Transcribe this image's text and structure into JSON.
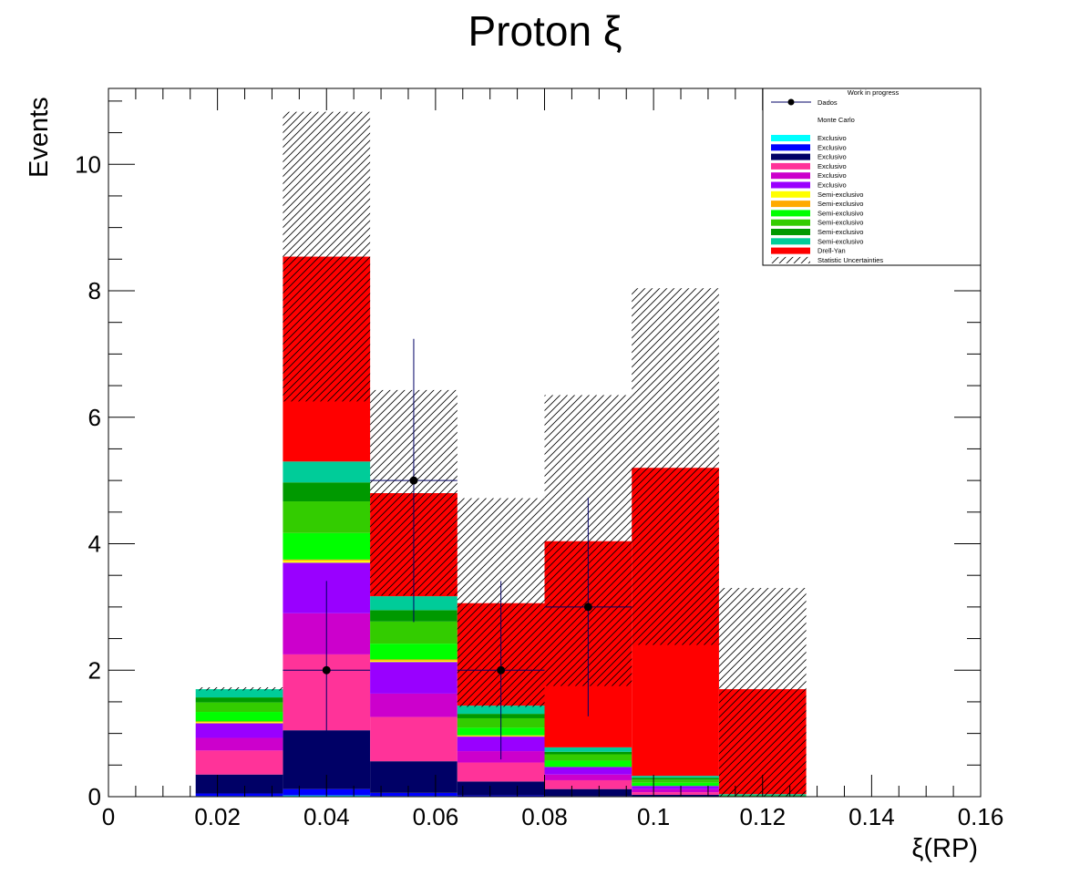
{
  "chart_data": {
    "type": "bar",
    "stacked": true,
    "title": "Proton ξ",
    "xlabel": "ξ(RP)",
    "ylabel": "Events",
    "xlim": [
      0,
      0.16
    ],
    "ylim": [
      0,
      11.2
    ],
    "grid": false,
    "legend_position": "top-right",
    "x_ticks": [
      "0",
      "0.02",
      "0.04",
      "0.06",
      "0.08",
      "0.1",
      "0.12",
      "0.14",
      "0.16"
    ],
    "y_ticks": [
      "0",
      "2",
      "4",
      "6",
      "8",
      "10"
    ],
    "bin_edges": [
      0.016,
      0.032,
      0.048,
      0.064,
      0.08,
      0.096,
      0.112,
      0.128
    ],
    "legend": {
      "header": "Work in progress",
      "data_label": "Dados",
      "mc_label": "Monte Carlo",
      "uncertainty_label": "Statistic Uncertainties"
    },
    "series": [
      {
        "name": "Exclusivo",
        "color": "#00ffff",
        "values": [
          0.01,
          0.02,
          0.01,
          0.0,
          0.0,
          0.0,
          0.0
        ]
      },
      {
        "name": "Exclusivo",
        "color": "#0000ff",
        "values": [
          0.04,
          0.1,
          0.05,
          0.02,
          0.01,
          0.0,
          0.0
        ]
      },
      {
        "name": "Exclusivo",
        "color": "#000066",
        "values": [
          0.3,
          0.93,
          0.5,
          0.22,
          0.11,
          0.03,
          0.0
        ]
      },
      {
        "name": "Exclusivo",
        "color": "#ff3399",
        "values": [
          0.38,
          1.2,
          0.7,
          0.3,
          0.14,
          0.04,
          0.0
        ]
      },
      {
        "name": "Exclusivo",
        "color": "#cc00cc",
        "values": [
          0.2,
          0.65,
          0.37,
          0.18,
          0.09,
          0.05,
          0.0
        ]
      },
      {
        "name": "Exclusivo",
        "color": "#9900ff",
        "values": [
          0.23,
          0.8,
          0.5,
          0.23,
          0.12,
          0.05,
          0.0
        ]
      },
      {
        "name": "Semi-exclusivo",
        "color": "#ffff00",
        "values": [
          0.02,
          0.03,
          0.02,
          0.01,
          0.0,
          0.0,
          0.0
        ]
      },
      {
        "name": "Semi-exclusivo",
        "color": "#ffaa00",
        "values": [
          0.01,
          0.02,
          0.02,
          0.01,
          0.0,
          0.0,
          0.0
        ]
      },
      {
        "name": "Semi-exclusivo",
        "color": "#00ff00",
        "values": [
          0.15,
          0.42,
          0.25,
          0.12,
          0.1,
          0.05,
          0.0
        ]
      },
      {
        "name": "Semi-exclusivo",
        "color": "#33cc00",
        "values": [
          0.15,
          0.5,
          0.35,
          0.15,
          0.1,
          0.05,
          0.01
        ]
      },
      {
        "name": "Semi-exclusivo",
        "color": "#009900",
        "values": [
          0.08,
          0.3,
          0.18,
          0.07,
          0.04,
          0.03,
          0.01
        ]
      },
      {
        "name": "Semi-exclusivo",
        "color": "#00cc99",
        "values": [
          0.13,
          0.33,
          0.22,
          0.13,
          0.07,
          0.03,
          0.02
        ]
      },
      {
        "name": "Drell-Yan",
        "color": "#ff0000",
        "values": [
          0.0,
          3.24,
          1.63,
          1.62,
          3.26,
          4.87,
          1.66
        ]
      }
    ],
    "uncertainty": {
      "name": "Statistic Uncertainties",
      "low": [
        1.68,
        6.25,
        3.18,
        1.42,
        1.75,
        2.4,
        0.0
      ],
      "high": [
        1.73,
        10.83,
        6.43,
        4.72,
        6.35,
        8.04,
        3.3
      ]
    },
    "data_points": {
      "name": "Dados",
      "x": [
        0.04,
        0.056,
        0.072,
        0.088
      ],
      "y": [
        2,
        5,
        2,
        3
      ],
      "x_err": [
        0.008,
        0.008,
        0.008,
        0.008
      ],
      "y_low": [
        1.41,
        2.24,
        1.41,
        1.73
      ],
      "y_high": [
        1.41,
        2.24,
        1.41,
        1.73
      ]
    }
  }
}
